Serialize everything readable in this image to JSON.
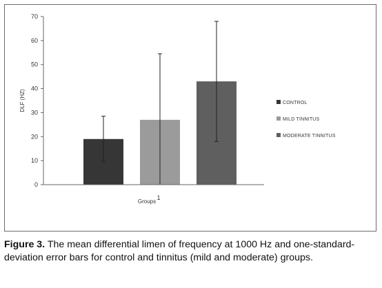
{
  "chart_data": {
    "type": "bar",
    "categories": [
      "CONTROL",
      "MILD TINNITUS",
      "MODERATE TINNITUS"
    ],
    "values": [
      19,
      27,
      43
    ],
    "error": [
      9.5,
      27.5,
      25
    ],
    "ylabel": "DLF (HZ)",
    "xlabel": "Groups",
    "x_tick": "1",
    "ylim": [
      0,
      70
    ],
    "yticks": [
      "0",
      "10",
      "20",
      "30",
      "40",
      "50",
      "60",
      "70"
    ],
    "colors": [
      "#363636",
      "#9b9b9b",
      "#5f5f5f"
    ],
    "legend_position": "right",
    "grid": false
  },
  "caption": {
    "label": "Figure 3.",
    "text": " The mean differential limen of frequency at 1000 Hz and one-standard-deviation error bars for control and tinnitus (mild and moderate) groups."
  }
}
